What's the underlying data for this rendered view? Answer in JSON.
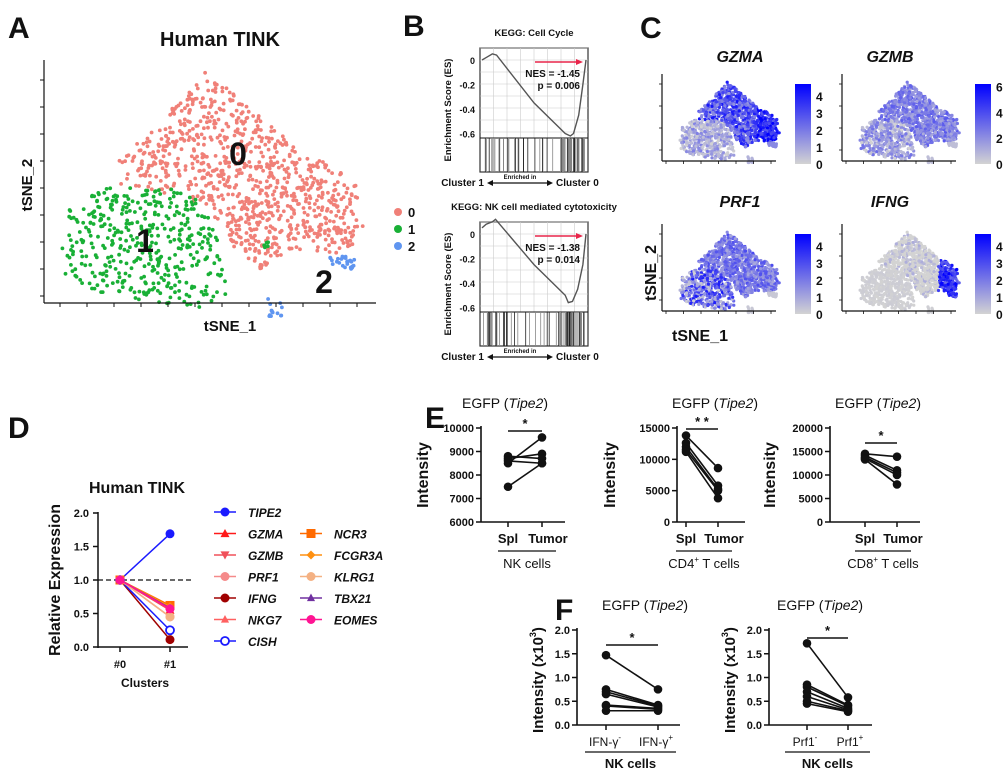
{
  "panel_labels": {
    "A": "A",
    "B": "B",
    "C": "C",
    "D": "D",
    "E": "E",
    "F": "F"
  },
  "chart_data": [
    {
      "panel": "A",
      "type": "scatter",
      "title": "Human TINK",
      "xlabel": "tSNE_1",
      "ylabel": "tSNE_2",
      "clusters": [
        {
          "name": "0",
          "color": "#f08078"
        },
        {
          "name": "1",
          "color": "#19b036"
        },
        {
          "name": "2",
          "color": "#5f95f0"
        }
      ]
    },
    {
      "panel": "B",
      "type": "line",
      "title": "KEGG: Cell Cycle",
      "ylabel": "Enrichment Score (ES)",
      "yticks": [
        0,
        -0.2,
        -0.4,
        -0.6
      ],
      "ytick_labels": [
        "0",
        "-0.2",
        "-0.4",
        "-0.6"
      ],
      "curve_rank_fraction": [
        0,
        0.04,
        0.1,
        0.14,
        0.5,
        0.8,
        0.85,
        0.88,
        0.93,
        0.97,
        1
      ],
      "curve_es": [
        0,
        0.02,
        0.05,
        0.04,
        -0.35,
        -0.6,
        -0.62,
        -0.6,
        -0.45,
        -0.2,
        0
      ],
      "nes": "NES = -1.45",
      "p": "p = 0.006",
      "left_label": "Cluster 1",
      "middle_label": "Enriched in",
      "right_label": "Cluster 0",
      "arrow_color": "#e8254a",
      "left_color": "#2e7d1a",
      "right_color": "#e8254a"
    },
    {
      "panel": "B",
      "type": "line",
      "title": "KEGG: NK cell mediated cytotoxicity",
      "ylabel": "Enrichment Score (ES)",
      "yticks": [
        0,
        -0.2,
        -0.4,
        -0.6
      ],
      "ytick_labels": [
        "0",
        "-0.2",
        "-0.4",
        "-0.6"
      ],
      "curve_rank_fraction": [
        0,
        0.04,
        0.1,
        0.13,
        0.5,
        0.8,
        0.83,
        0.87,
        0.92,
        0.97,
        1
      ],
      "curve_es": [
        0.05,
        0.08,
        0.1,
        0.12,
        -0.25,
        -0.5,
        -0.56,
        -0.55,
        -0.45,
        -0.25,
        0
      ],
      "nes": "NES = -1.38",
      "p": "p = 0.014",
      "left_label": "Cluster 1",
      "middle_label": "Enriched in",
      "right_label": "Cluster 0",
      "arrow_color": "#e8254a",
      "left_color": "#2e7d1a",
      "right_color": "#e8254a"
    },
    {
      "panel": "C",
      "type": "scatter",
      "xlabel": "tSNE_1",
      "ylabel": "tSNE_2",
      "low_color": "#d3d3d3",
      "high_color": "#0000ff",
      "genes": [
        {
          "name": "GZMA",
          "ticks": [
            "0",
            "1",
            "2",
            "3",
            "4"
          ]
        },
        {
          "name": "GZMB",
          "ticks": [
            "0",
            "2",
            "4",
            "6"
          ]
        },
        {
          "name": "PRF1",
          "ticks": [
            "0",
            "1",
            "2",
            "3",
            "4"
          ]
        },
        {
          "name": "IFNG",
          "ticks": [
            "0",
            "1",
            "2",
            "3",
            "4"
          ]
        }
      ]
    },
    {
      "panel": "D",
      "type": "line",
      "title": "Human TINK",
      "xlabel": "Clusters",
      "ylabel": "Relative Expression",
      "categories": [
        "#0",
        "#1"
      ],
      "ylim": [
        0,
        2
      ],
      "ytick_labels": [
        "0.0",
        "0.5",
        "1.0",
        "1.5",
        "2.0"
      ],
      "reference_line": 1.0,
      "series": [
        {
          "name": "TIPE2",
          "values": [
            1,
            1.69
          ],
          "color": "#1a1aff",
          "marker": "circle"
        },
        {
          "name": "GZMA",
          "values": [
            1,
            0.55
          ],
          "color": "#ff1a1a",
          "marker": "triangle"
        },
        {
          "name": "GZMB",
          "values": [
            1,
            0.55
          ],
          "color": "#f0505a",
          "marker": "triangle-down"
        },
        {
          "name": "PRF1",
          "values": [
            1,
            0.45
          ],
          "color": "#f58a8a",
          "marker": "circle"
        },
        {
          "name": "IFNG",
          "values": [
            1,
            0.11
          ],
          "color": "#a00000",
          "marker": "circle"
        },
        {
          "name": "NKG7",
          "values": [
            1,
            0.6
          ],
          "color": "#ff6060",
          "marker": "star"
        },
        {
          "name": "CISH",
          "values": [
            1,
            0.25
          ],
          "color": "#1a1aff",
          "marker": "open-circle"
        },
        {
          "name": "NCR3",
          "values": [
            1,
            0.62
          ],
          "color": "#ff6a00",
          "marker": "square"
        },
        {
          "name": "FCGR3A",
          "values": [
            1,
            0.6
          ],
          "color": "#ff9010",
          "marker": "diamond"
        },
        {
          "name": "KLRG1",
          "values": [
            1,
            0.45
          ],
          "color": "#f4b183",
          "marker": "circle"
        },
        {
          "name": "TBX21",
          "values": [
            1,
            0.58
          ],
          "color": "#7030a0",
          "marker": "star"
        },
        {
          "name": "EOMES",
          "values": [
            1,
            0.57
          ],
          "color": "#ff1493",
          "marker": "circle"
        }
      ]
    },
    {
      "panel": "E",
      "type": "line",
      "title_prefix": "EGFP (",
      "title_gene": "Tipe2",
      "title_suffix": ")",
      "ylabel": "Intensity",
      "categories": [
        "Spl",
        "Tumor"
      ],
      "group": "NK cells",
      "group_sup": "",
      "group_rest": "",
      "ylim": [
        6000,
        10000
      ],
      "ytick_labels": [
        "6000",
        "7000",
        "8000",
        "9000",
        "10000"
      ],
      "yticks": [
        6000,
        7000,
        8000,
        9000,
        10000
      ],
      "significance": "*",
      "pairs": [
        [
          7500,
          8500
        ],
        [
          8500,
          9600
        ],
        [
          8700,
          8900
        ],
        [
          8800,
          8700
        ],
        [
          8600,
          8500
        ]
      ]
    },
    {
      "panel": "E",
      "type": "line",
      "title_prefix": "EGFP (",
      "title_gene": "Tipe2",
      "title_suffix": ")",
      "ylabel": "Intensity",
      "categories": [
        "Spl",
        "Tumor"
      ],
      "group": "CD4",
      "group_sup": "+",
      "group_rest": " T cells",
      "ylim": [
        0,
        15000
      ],
      "ytick_labels": [
        "0",
        "5000",
        "10000",
        "15000"
      ],
      "yticks": [
        0,
        5000,
        10000,
        15000
      ],
      "significance": "* *",
      "pairs": [
        [
          13800,
          8600
        ],
        [
          12600,
          5800
        ],
        [
          12000,
          5200
        ],
        [
          11500,
          5000
        ],
        [
          11200,
          3800
        ]
      ]
    },
    {
      "panel": "E",
      "type": "line",
      "title_prefix": "EGFP (",
      "title_gene": "Tipe2",
      "title_suffix": ")",
      "ylabel": "Intensity",
      "categories": [
        "Spl",
        "Tumor"
      ],
      "group": "CD8",
      "group_sup": "+",
      "group_rest": " T cells",
      "ylim": [
        0,
        20000
      ],
      "ytick_labels": [
        "0",
        "5000",
        "10000",
        "15000",
        "20000"
      ],
      "yticks": [
        0,
        5000,
        10000,
        15000,
        20000
      ],
      "significance": "*",
      "pairs": [
        [
          14500,
          13900
        ],
        [
          14200,
          11000
        ],
        [
          13800,
          10500
        ],
        [
          13500,
          10000
        ],
        [
          13300,
          8000
        ]
      ]
    },
    {
      "panel": "F",
      "type": "line",
      "title_prefix": "EGFP (",
      "title_gene": "Tipe2",
      "title_suffix": ")",
      "ylabel": "Intensity (x10",
      "ylabel_sup": "3",
      "ylabel_end": ")",
      "categories": [
        "IFN-γ",
        "IFN-γ"
      ],
      "category_sups": [
        "-",
        "+"
      ],
      "group": "NK cells",
      "ylim": [
        0,
        2
      ],
      "ytick_labels": [
        "0.0",
        "0.5",
        "1.0",
        "1.5",
        "2.0"
      ],
      "yticks": [
        0,
        0.5,
        1,
        1.5,
        2
      ],
      "significance": "*",
      "pairs": [
        [
          1.47,
          0.75
        ],
        [
          0.75,
          0.42
        ],
        [
          0.7,
          0.4
        ],
        [
          0.65,
          0.38
        ],
        [
          0.42,
          0.35
        ],
        [
          0.4,
          0.33
        ],
        [
          0.3,
          0.3
        ]
      ]
    },
    {
      "panel": "F",
      "type": "line",
      "title_prefix": "EGFP (",
      "title_gene": "Tipe2",
      "title_suffix": ")",
      "ylabel": "Intensity (x10",
      "ylabel_sup": "3",
      "ylabel_end": ")",
      "categories": [
        "Prf1",
        "Prf1"
      ],
      "category_sups": [
        "-",
        "+"
      ],
      "group": "NK cells",
      "ylim": [
        0,
        2
      ],
      "ytick_labels": [
        "0.0",
        "0.5",
        "1.0",
        "1.5",
        "2.0"
      ],
      "yticks": [
        0,
        0.5,
        1,
        1.5,
        2
      ],
      "significance": "*",
      "pairs": [
        [
          1.72,
          0.58
        ],
        [
          0.85,
          0.42
        ],
        [
          0.8,
          0.4
        ],
        [
          0.7,
          0.35
        ],
        [
          0.6,
          0.32
        ],
        [
          0.5,
          0.3
        ],
        [
          0.45,
          0.28
        ]
      ]
    }
  ]
}
